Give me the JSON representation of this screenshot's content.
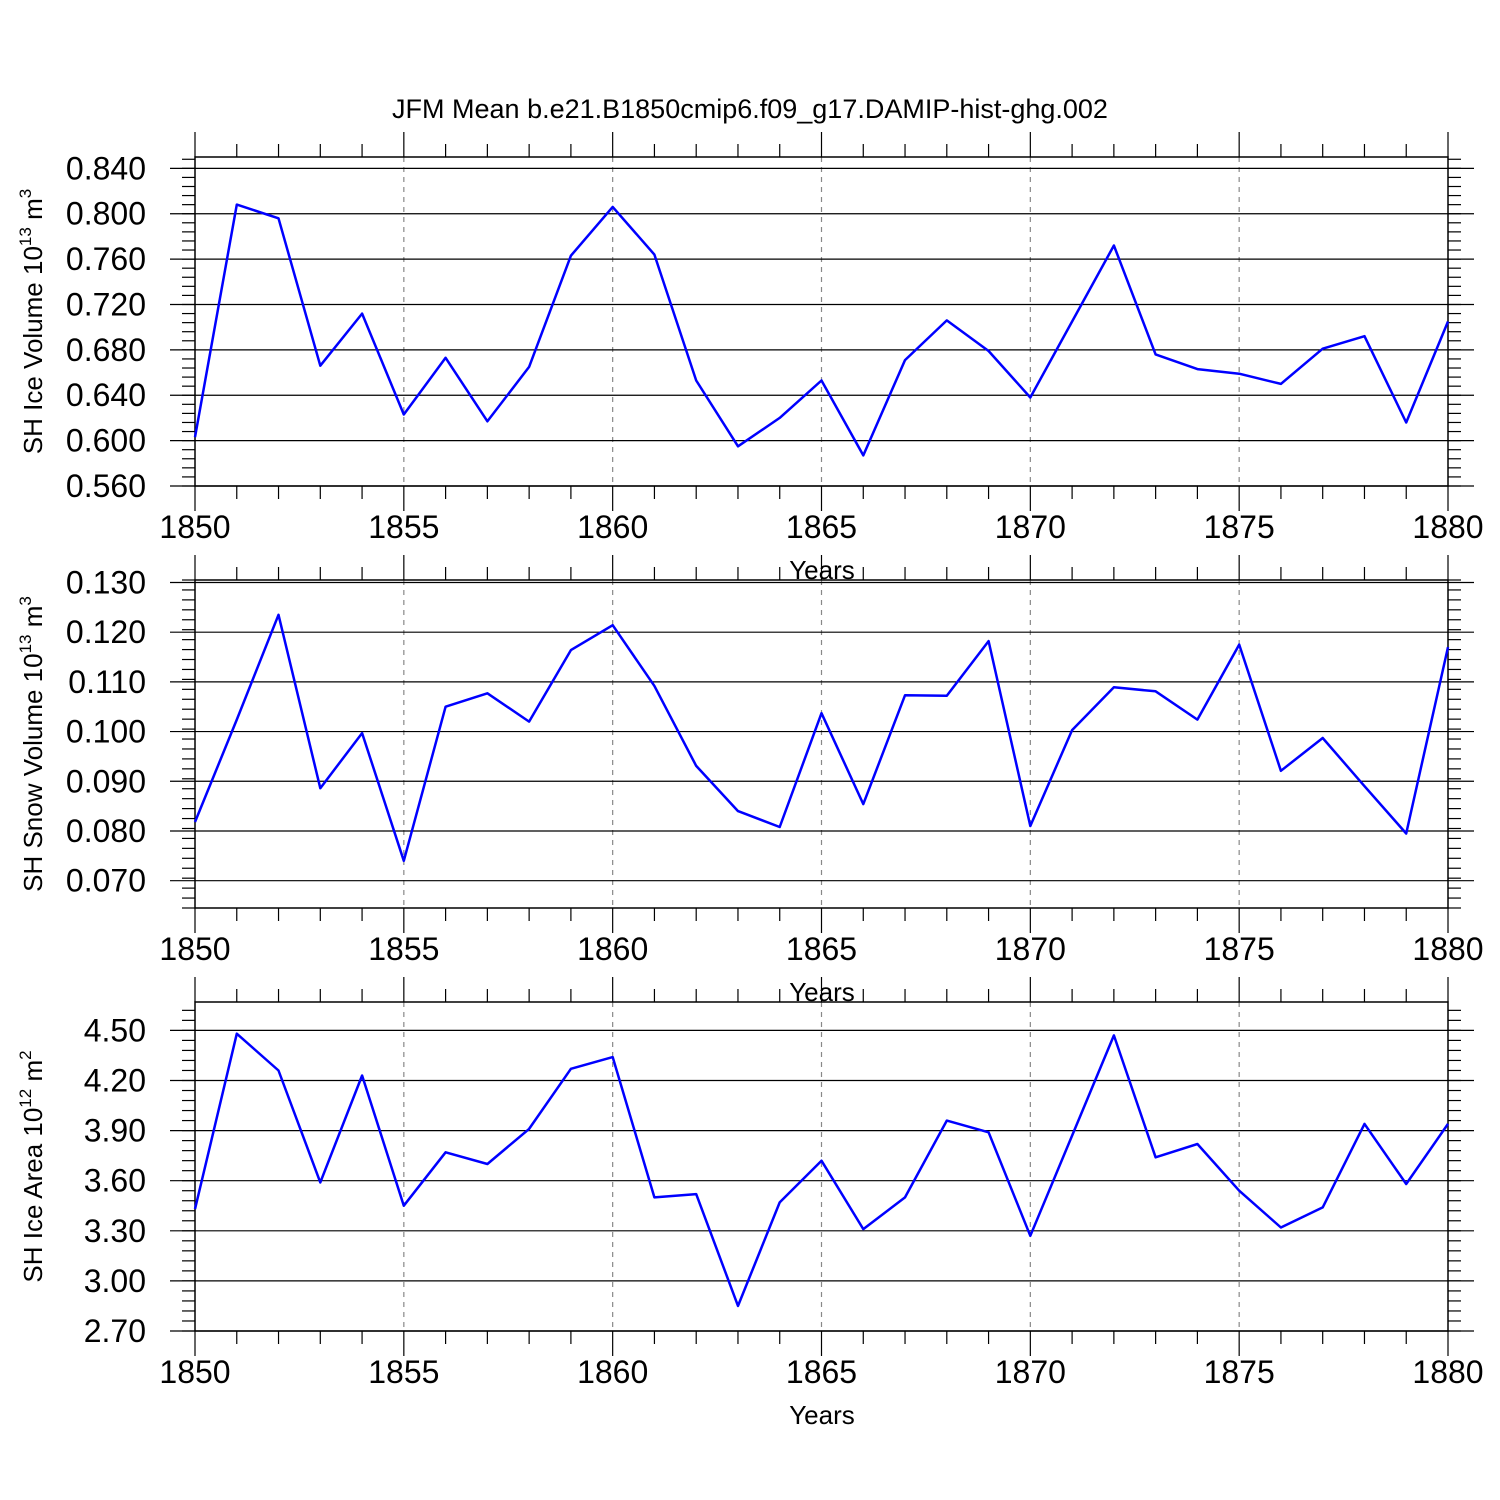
{
  "title": "JFM Mean b.e21.B1850cmip6.f09_g17.DAMIP-hist-ghg.002",
  "colors": {
    "series": "#0000ff",
    "frame": "#000000",
    "grid": "#888888"
  },
  "chart_data": [
    {
      "type": "line",
      "ylabel": "SH Ice Volume 10",
      "ylabel_exp": "13",
      "ylabel_unit": " m",
      "ylabel_unit_exp": "3",
      "xlabel": "Years",
      "xlim": [
        1850,
        1880
      ],
      "ylim": [
        0.56,
        0.85
      ],
      "x_major_ticks": [
        1850,
        1855,
        1860,
        1865,
        1870,
        1875,
        1880
      ],
      "y_major_ticks": [
        0.56,
        0.6,
        0.64,
        0.68,
        0.72,
        0.76,
        0.8,
        0.84
      ],
      "y_tick_labels": [
        "0.560",
        "0.600",
        "0.640",
        "0.680",
        "0.720",
        "0.760",
        "0.800",
        "0.840"
      ],
      "y_minor_step": 0.008,
      "x": [
        1850,
        1851,
        1852,
        1853,
        1854,
        1855,
        1856,
        1857,
        1858,
        1859,
        1860,
        1861,
        1862,
        1863,
        1864,
        1865,
        1866,
        1867,
        1868,
        1869,
        1870,
        1871,
        1872,
        1873,
        1874,
        1875,
        1876,
        1877,
        1878,
        1879,
        1880
      ],
      "values": [
        0.603,
        0.808,
        0.796,
        0.666,
        0.712,
        0.623,
        0.673,
        0.617,
        0.665,
        0.763,
        0.806,
        0.764,
        0.653,
        0.595,
        0.62,
        0.653,
        0.587,
        0.671,
        0.706,
        0.679,
        0.638,
        0.705,
        0.772,
        0.676,
        0.663,
        0.659,
        0.65,
        0.681,
        0.692,
        0.616,
        0.705
      ]
    },
    {
      "type": "line",
      "ylabel": "SH Snow Volume 10",
      "ylabel_exp": "13",
      "ylabel_unit": " m",
      "ylabel_unit_exp": "3",
      "xlabel": "Years",
      "xlim": [
        1850,
        1880
      ],
      "ylim": [
        0.0645,
        0.1305
      ],
      "x_major_ticks": [
        1850,
        1855,
        1860,
        1865,
        1870,
        1875,
        1880
      ],
      "y_major_ticks": [
        0.07,
        0.08,
        0.09,
        0.1,
        0.11,
        0.12,
        0.13
      ],
      "y_tick_labels": [
        "0.070",
        "0.080",
        "0.090",
        "0.100",
        "0.110",
        "0.120",
        "0.130"
      ],
      "y_minor_step": 0.002,
      "x": [
        1850,
        1851,
        1852,
        1853,
        1854,
        1855,
        1856,
        1857,
        1858,
        1859,
        1860,
        1861,
        1862,
        1863,
        1864,
        1865,
        1866,
        1867,
        1868,
        1869,
        1870,
        1871,
        1872,
        1873,
        1874,
        1875,
        1876,
        1877,
        1878,
        1879,
        1880
      ],
      "values": [
        0.0818,
        0.1024,
        0.1235,
        0.0886,
        0.0997,
        0.074,
        0.105,
        0.1077,
        0.102,
        0.1164,
        0.1214,
        0.1092,
        0.0931,
        0.084,
        0.0808,
        0.1037,
        0.0854,
        0.1073,
        0.1072,
        0.1182,
        0.081,
        0.1003,
        0.1089,
        0.1081,
        0.1024,
        0.1175,
        0.0921,
        0.0987,
        0.089,
        0.0795,
        0.117
      ]
    },
    {
      "type": "line",
      "ylabel": "SH Ice Area 10",
      "ylabel_exp": "12",
      "ylabel_unit": " m",
      "ylabel_unit_exp": "2",
      "xlabel": "Years",
      "xlim": [
        1850,
        1880
      ],
      "ylim": [
        2.7,
        4.67
      ],
      "x_major_ticks": [
        1850,
        1855,
        1860,
        1865,
        1870,
        1875,
        1880
      ],
      "y_major_ticks": [
        2.7,
        3.0,
        3.3,
        3.6,
        3.9,
        4.2,
        4.5
      ],
      "y_tick_labels": [
        "2.70",
        "3.00",
        "3.30",
        "3.60",
        "3.90",
        "4.20",
        "4.50"
      ],
      "y_minor_step": 0.06,
      "x": [
        1850,
        1851,
        1852,
        1853,
        1854,
        1855,
        1856,
        1857,
        1858,
        1859,
        1860,
        1861,
        1862,
        1863,
        1864,
        1865,
        1866,
        1867,
        1868,
        1869,
        1870,
        1871,
        1872,
        1873,
        1874,
        1875,
        1876,
        1877,
        1878,
        1879,
        1880
      ],
      "values": [
        3.43,
        4.48,
        4.26,
        3.59,
        4.23,
        3.45,
        3.77,
        3.7,
        3.91,
        4.27,
        4.34,
        3.5,
        3.52,
        2.85,
        3.47,
        3.72,
        3.31,
        3.5,
        3.96,
        3.89,
        3.27,
        3.87,
        4.47,
        3.74,
        3.82,
        3.54,
        3.32,
        3.44,
        3.94,
        3.58,
        3.94
      ]
    }
  ]
}
